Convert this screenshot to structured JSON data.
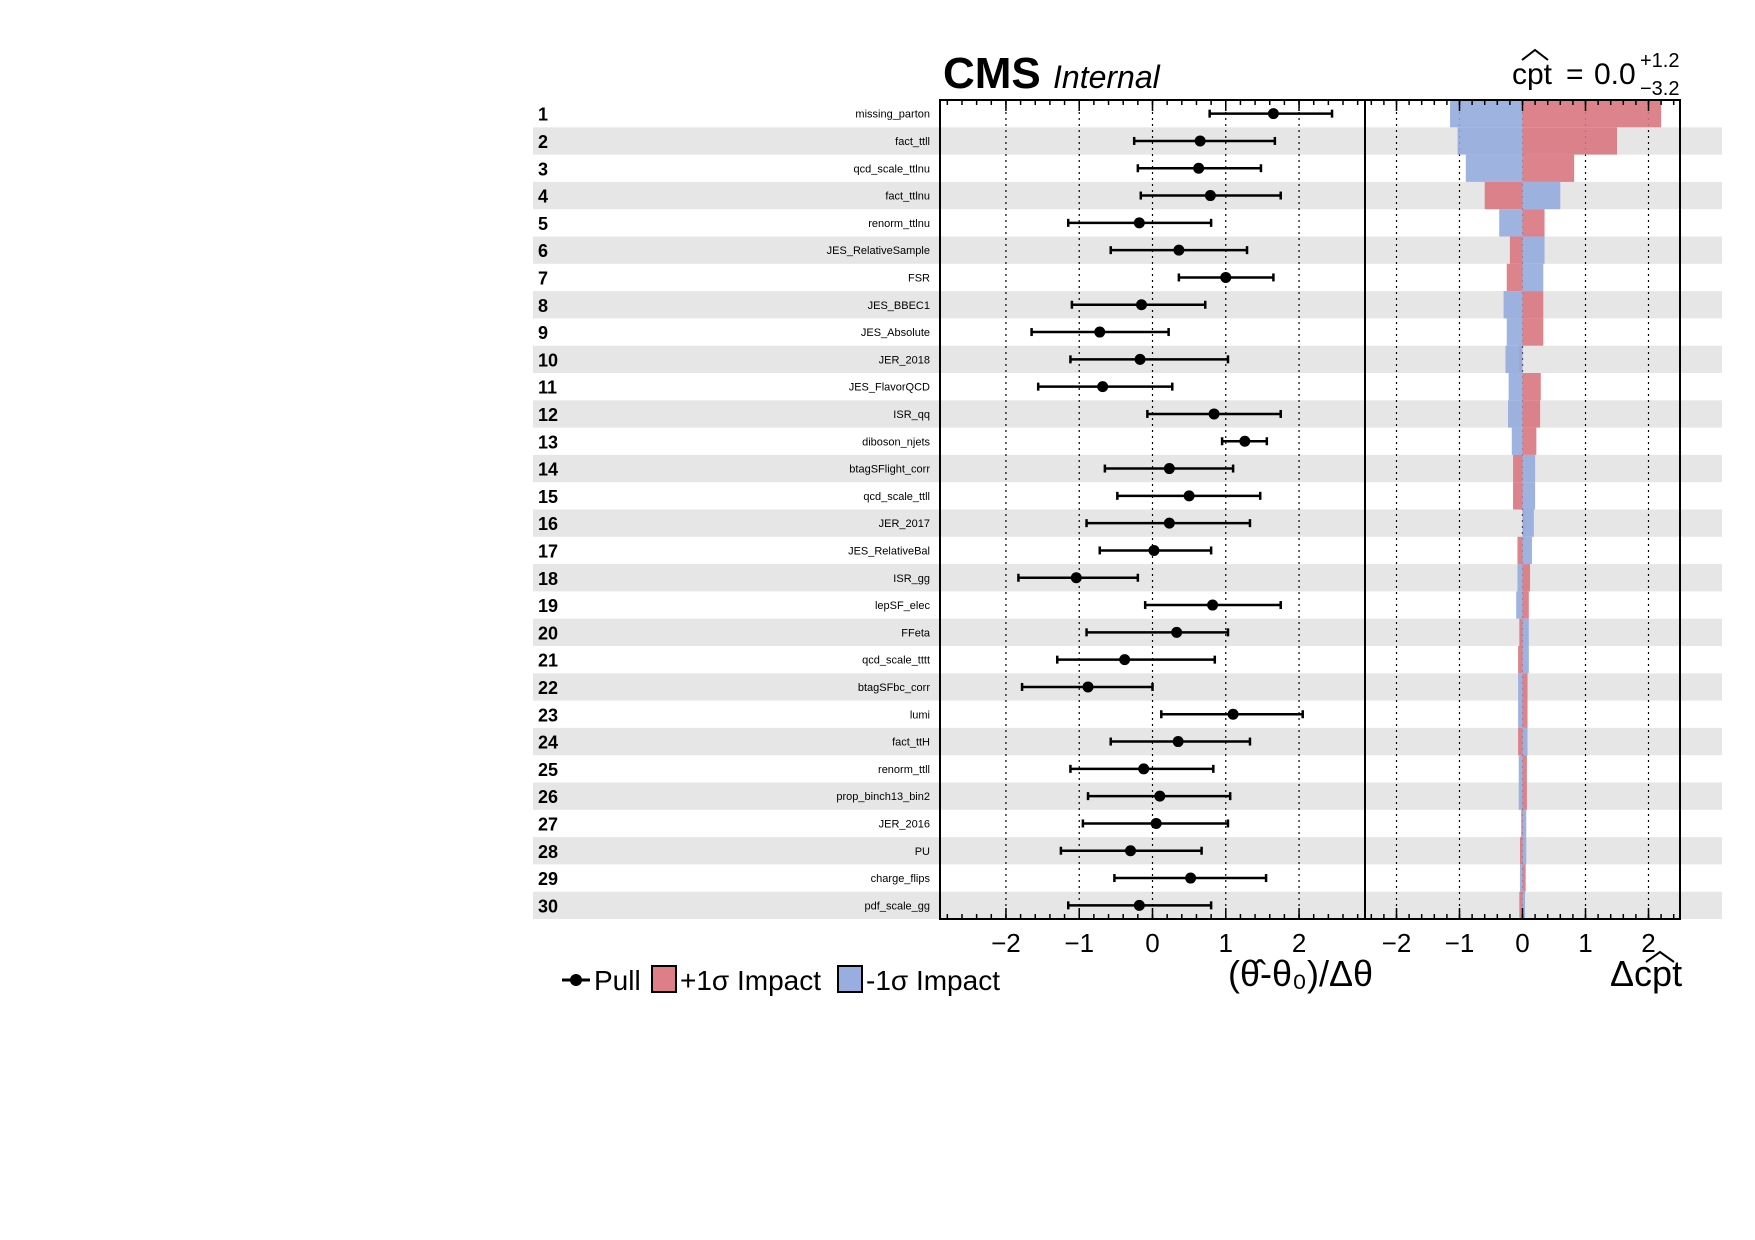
{
  "header": {
    "experiment": "CMS",
    "status": "Internal"
  },
  "poi_result": {
    "name": "cpt",
    "value": "0.0",
    "err_up": "+1.2",
    "err_down": "−3.2"
  },
  "chart_data": {
    "type": "impact",
    "pull_axis": {
      "label": "(θ̂-θ₀)/Δθ",
      "lim": [
        -2.9,
        2.9
      ],
      "ticks": [
        "−2",
        "−1",
        "0",
        "1",
        "2"
      ],
      "tick_values": [
        -2,
        -1,
        0,
        1,
        2
      ]
    },
    "impact_axis": {
      "label": "Δcpt",
      "lim": [
        -2.5,
        2.5
      ],
      "ticks": [
        "−2",
        "−1",
        "0",
        "1",
        "2"
      ],
      "tick_values": [
        -2,
        -1,
        0,
        1,
        2
      ]
    },
    "legend": [
      {
        "label": "Pull",
        "kind": "marker"
      },
      {
        "label": "+1σ Impact",
        "kind": "box",
        "color": "#de7f87"
      },
      {
        "label": "-1σ Impact",
        "kind": "box",
        "color": "#99aee0"
      }
    ],
    "colors": {
      "plus": "#d9767f",
      "minus": "#95abdd",
      "band": "#e6e6e6"
    },
    "params": [
      {
        "rank": "1",
        "name": "missing_parton",
        "pull": 1.65,
        "lo": 0.78,
        "hi": 2.45,
        "imp_plus": 2.2,
        "imp_minus": -1.15
      },
      {
        "rank": "2",
        "name": "fact_ttll",
        "pull": 0.65,
        "lo": -0.25,
        "hi": 1.67,
        "imp_plus": 1.5,
        "imp_minus": -1.03
      },
      {
        "rank": "3",
        "name": "qcd_scale_ttlnu",
        "pull": 0.63,
        "lo": -0.2,
        "hi": 1.48,
        "imp_plus": 0.82,
        "imp_minus": -0.9
      },
      {
        "rank": "4",
        "name": "fact_ttlnu",
        "pull": 0.79,
        "lo": -0.16,
        "hi": 1.75,
        "imp_plus": -0.6,
        "imp_minus": 0.6
      },
      {
        "rank": "5",
        "name": "renorm_ttlnu",
        "pull": -0.18,
        "lo": -1.15,
        "hi": 0.8,
        "imp_plus": 0.35,
        "imp_minus": -0.37
      },
      {
        "rank": "6",
        "name": "JES_RelativeSample",
        "pull": 0.36,
        "lo": -0.57,
        "hi": 1.29,
        "imp_plus": -0.2,
        "imp_minus": 0.35
      },
      {
        "rank": "7",
        "name": "FSR",
        "pull": 1.0,
        "lo": 0.36,
        "hi": 1.65,
        "imp_plus": -0.25,
        "imp_minus": 0.33
      },
      {
        "rank": "8",
        "name": "JES_BBEC1",
        "pull": -0.15,
        "lo": -1.1,
        "hi": 0.72,
        "imp_plus": 0.33,
        "imp_minus": -0.3
      },
      {
        "rank": "9",
        "name": "JES_Absolute",
        "pull": -0.72,
        "lo": -1.65,
        "hi": 0.22,
        "imp_plus": 0.33,
        "imp_minus": -0.25
      },
      {
        "rank": "10",
        "name": "JER_2018",
        "pull": -0.17,
        "lo": -1.12,
        "hi": 1.03,
        "imp_plus": -0.05,
        "imp_minus": -0.27
      },
      {
        "rank": "11",
        "name": "JES_FlavorQCD",
        "pull": -0.68,
        "lo": -1.56,
        "hi": 0.27,
        "imp_plus": 0.29,
        "imp_minus": -0.22
      },
      {
        "rank": "12",
        "name": "ISR_qq",
        "pull": 0.84,
        "lo": -0.07,
        "hi": 1.75,
        "imp_plus": 0.28,
        "imp_minus": -0.23
      },
      {
        "rank": "13",
        "name": "diboson_njets",
        "pull": 1.26,
        "lo": 0.95,
        "hi": 1.56,
        "imp_plus": 0.22,
        "imp_minus": -0.17
      },
      {
        "rank": "14",
        "name": "btagSFlight_corr",
        "pull": 0.23,
        "lo": -0.65,
        "hi": 1.1,
        "imp_plus": -0.15,
        "imp_minus": 0.2
      },
      {
        "rank": "15",
        "name": "qcd_scale_ttll",
        "pull": 0.5,
        "lo": -0.48,
        "hi": 1.47,
        "imp_plus": -0.15,
        "imp_minus": 0.2
      },
      {
        "rank": "16",
        "name": "JER_2017",
        "pull": 0.23,
        "lo": -0.9,
        "hi": 1.33,
        "imp_plus": 0.03,
        "imp_minus": 0.18
      },
      {
        "rank": "17",
        "name": "JES_RelativeBal",
        "pull": 0.02,
        "lo": -0.72,
        "hi": 0.8,
        "imp_plus": -0.08,
        "imp_minus": 0.15
      },
      {
        "rank": "18",
        "name": "ISR_gg",
        "pull": -1.04,
        "lo": -1.83,
        "hi": -0.2,
        "imp_plus": 0.12,
        "imp_minus": -0.08
      },
      {
        "rank": "19",
        "name": "lepSF_elec",
        "pull": 0.82,
        "lo": -0.1,
        "hi": 1.75,
        "imp_plus": 0.1,
        "imp_minus": -0.1
      },
      {
        "rank": "20",
        "name": "FFeta",
        "pull": 0.33,
        "lo": -0.9,
        "hi": 1.03,
        "imp_plus": -0.05,
        "imp_minus": 0.1
      },
      {
        "rank": "21",
        "name": "qcd_scale_tttt",
        "pull": -0.38,
        "lo": -1.3,
        "hi": 0.85,
        "imp_plus": -0.07,
        "imp_minus": 0.1
      },
      {
        "rank": "22",
        "name": "btagSFbc_corr",
        "pull": -0.88,
        "lo": -1.78,
        "hi": 0.0,
        "imp_plus": 0.08,
        "imp_minus": -0.07
      },
      {
        "rank": "23",
        "name": "lumi",
        "pull": 1.1,
        "lo": 0.12,
        "hi": 2.05,
        "imp_plus": 0.08,
        "imp_minus": -0.07
      },
      {
        "rank": "24",
        "name": "fact_ttH",
        "pull": 0.35,
        "lo": -0.57,
        "hi": 1.33,
        "imp_plus": -0.07,
        "imp_minus": 0.08
      },
      {
        "rank": "25",
        "name": "renorm_ttll",
        "pull": -0.12,
        "lo": -1.12,
        "hi": 0.83,
        "imp_plus": 0.07,
        "imp_minus": -0.06
      },
      {
        "rank": "26",
        "name": "prop_binch13_bin2",
        "pull": 0.1,
        "lo": -0.88,
        "hi": 1.06,
        "imp_plus": 0.07,
        "imp_minus": -0.06
      },
      {
        "rank": "27",
        "name": "JER_2016",
        "pull": 0.05,
        "lo": -0.95,
        "hi": 1.03,
        "imp_plus": -0.02,
        "imp_minus": 0.06
      },
      {
        "rank": "28",
        "name": "PU",
        "pull": -0.3,
        "lo": -1.25,
        "hi": 0.67,
        "imp_plus": -0.04,
        "imp_minus": 0.06
      },
      {
        "rank": "29",
        "name": "charge_flips",
        "pull": 0.52,
        "lo": -0.52,
        "hi": 1.55,
        "imp_plus": 0.05,
        "imp_minus": -0.04
      },
      {
        "rank": "30",
        "name": "pdf_scale_gg",
        "pull": -0.18,
        "lo": -1.15,
        "hi": 0.8,
        "imp_plus": -0.05,
        "imp_minus": 0.04
      }
    ]
  }
}
